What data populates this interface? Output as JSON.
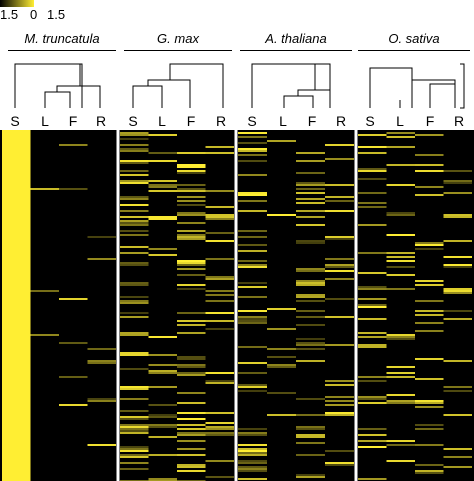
{
  "color_scale": {
    "ticks": [
      "1.5",
      "0",
      "1.5"
    ],
    "low_color": "#000000",
    "high_color": "#ffee33"
  },
  "chart_data": {
    "type": "heatmap",
    "title": "",
    "columns": [
      "S",
      "L",
      "F",
      "R"
    ],
    "value_range": [
      0,
      1.5
    ],
    "panels": [
      {
        "species": "M. truncatula",
        "dendrogram": "((L,F),R) joined with S",
        "column_intensity_mean": {
          "S": 1.4,
          "L": 0.05,
          "F": 0.05,
          "R": 0.05
        }
      },
      {
        "species": "G. max",
        "dendrogram": "(((S,L),F),R)",
        "column_intensity_mean": {
          "S": 0.6,
          "L": 0.25,
          "F": 0.45,
          "R": 0.35
        }
      },
      {
        "species": "A. thaliana",
        "dendrogram": "(S,((L,F),R))",
        "column_intensity_mean": {
          "S": 0.5,
          "L": 0.15,
          "F": 0.35,
          "R": 0.3
        }
      },
      {
        "species": "O. sativa",
        "dendrogram": "(S,(L,(F,R)))",
        "column_intensity_mean": {
          "S": 0.35,
          "L": 0.2,
          "F": 0.3,
          "R": 0.2
        }
      }
    ]
  }
}
